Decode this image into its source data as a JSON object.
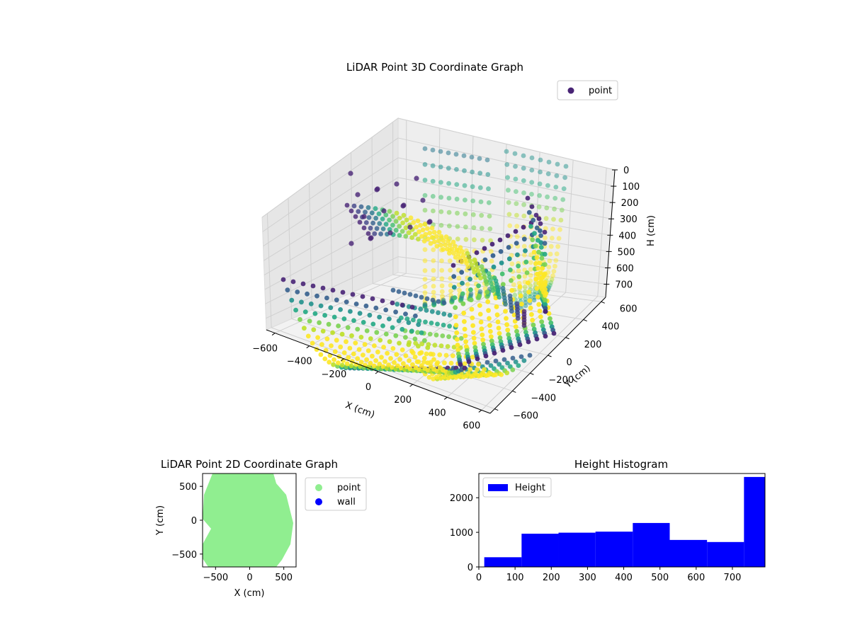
{
  "chart_data": [
    {
      "type": "scatter",
      "title": "LiDAR Point 3D Coordinate Graph",
      "xlabel": "X (cm)",
      "ylabel": "Y (cm)",
      "zlabel": "H (cm)",
      "xlim": [
        -650,
        650
      ],
      "ylim": [
        -650,
        650
      ],
      "zlim": [
        0,
        780
      ],
      "z_inverted": true,
      "x_ticks": [
        "−600",
        "−400",
        "−200",
        "0",
        "200",
        "400",
        "600"
      ],
      "y_ticks": [
        "−600",
        "−400",
        "−200",
        "0",
        "200",
        "400",
        "600"
      ],
      "z_ticks": [
        "0",
        "100",
        "200",
        "300",
        "400",
        "500",
        "600",
        "700"
      ],
      "legend": [
        "point"
      ],
      "legend_position": "top-right",
      "colormap": "viridis",
      "series": [
        {
          "name": "point",
          "color": "#482475"
        }
      ]
    },
    {
      "type": "scatter",
      "title": "LiDAR Point 2D Coordinate Graph",
      "xlabel": "X (cm)",
      "ylabel": "Y (cm)",
      "xlim": [
        -690,
        680
      ],
      "ylim": [
        -690,
        690
      ],
      "x_ticks": [
        "−500",
        "0",
        "500"
      ],
      "y_ticks": [
        "500",
        "0",
        "−500"
      ],
      "legend": [
        "point",
        "wall"
      ],
      "legend_position": "outside-right",
      "series": [
        {
          "name": "point",
          "color": "#90ee90"
        },
        {
          "name": "wall",
          "color": "#0000ff"
        }
      ]
    },
    {
      "type": "bar",
      "title": "Height Histogram",
      "xlim": [
        0,
        790
      ],
      "ylim": [
        0,
        2700
      ],
      "x_ticks": [
        "0",
        "100",
        "200",
        "300",
        "400",
        "500",
        "600",
        "700"
      ],
      "y_ticks": [
        "0",
        "1000",
        "2000"
      ],
      "legend": [
        "Height"
      ],
      "legend_position": "top-left",
      "series": [
        {
          "name": "Height",
          "color": "#0000ff"
        }
      ],
      "bins": [
        {
          "x0": 15,
          "x1": 118,
          "value": 280
        },
        {
          "x0": 118,
          "x1": 220,
          "value": 960
        },
        {
          "x0": 220,
          "x1": 322,
          "value": 990
        },
        {
          "x0": 322,
          "x1": 425,
          "value": 1020
        },
        {
          "x0": 425,
          "x1": 527,
          "value": 1270
        },
        {
          "x0": 527,
          "x1": 630,
          "value": 780
        },
        {
          "x0": 630,
          "x1": 732,
          "value": 720
        },
        {
          "x0": 732,
          "x1": 790,
          "value": 2600
        }
      ]
    }
  ]
}
